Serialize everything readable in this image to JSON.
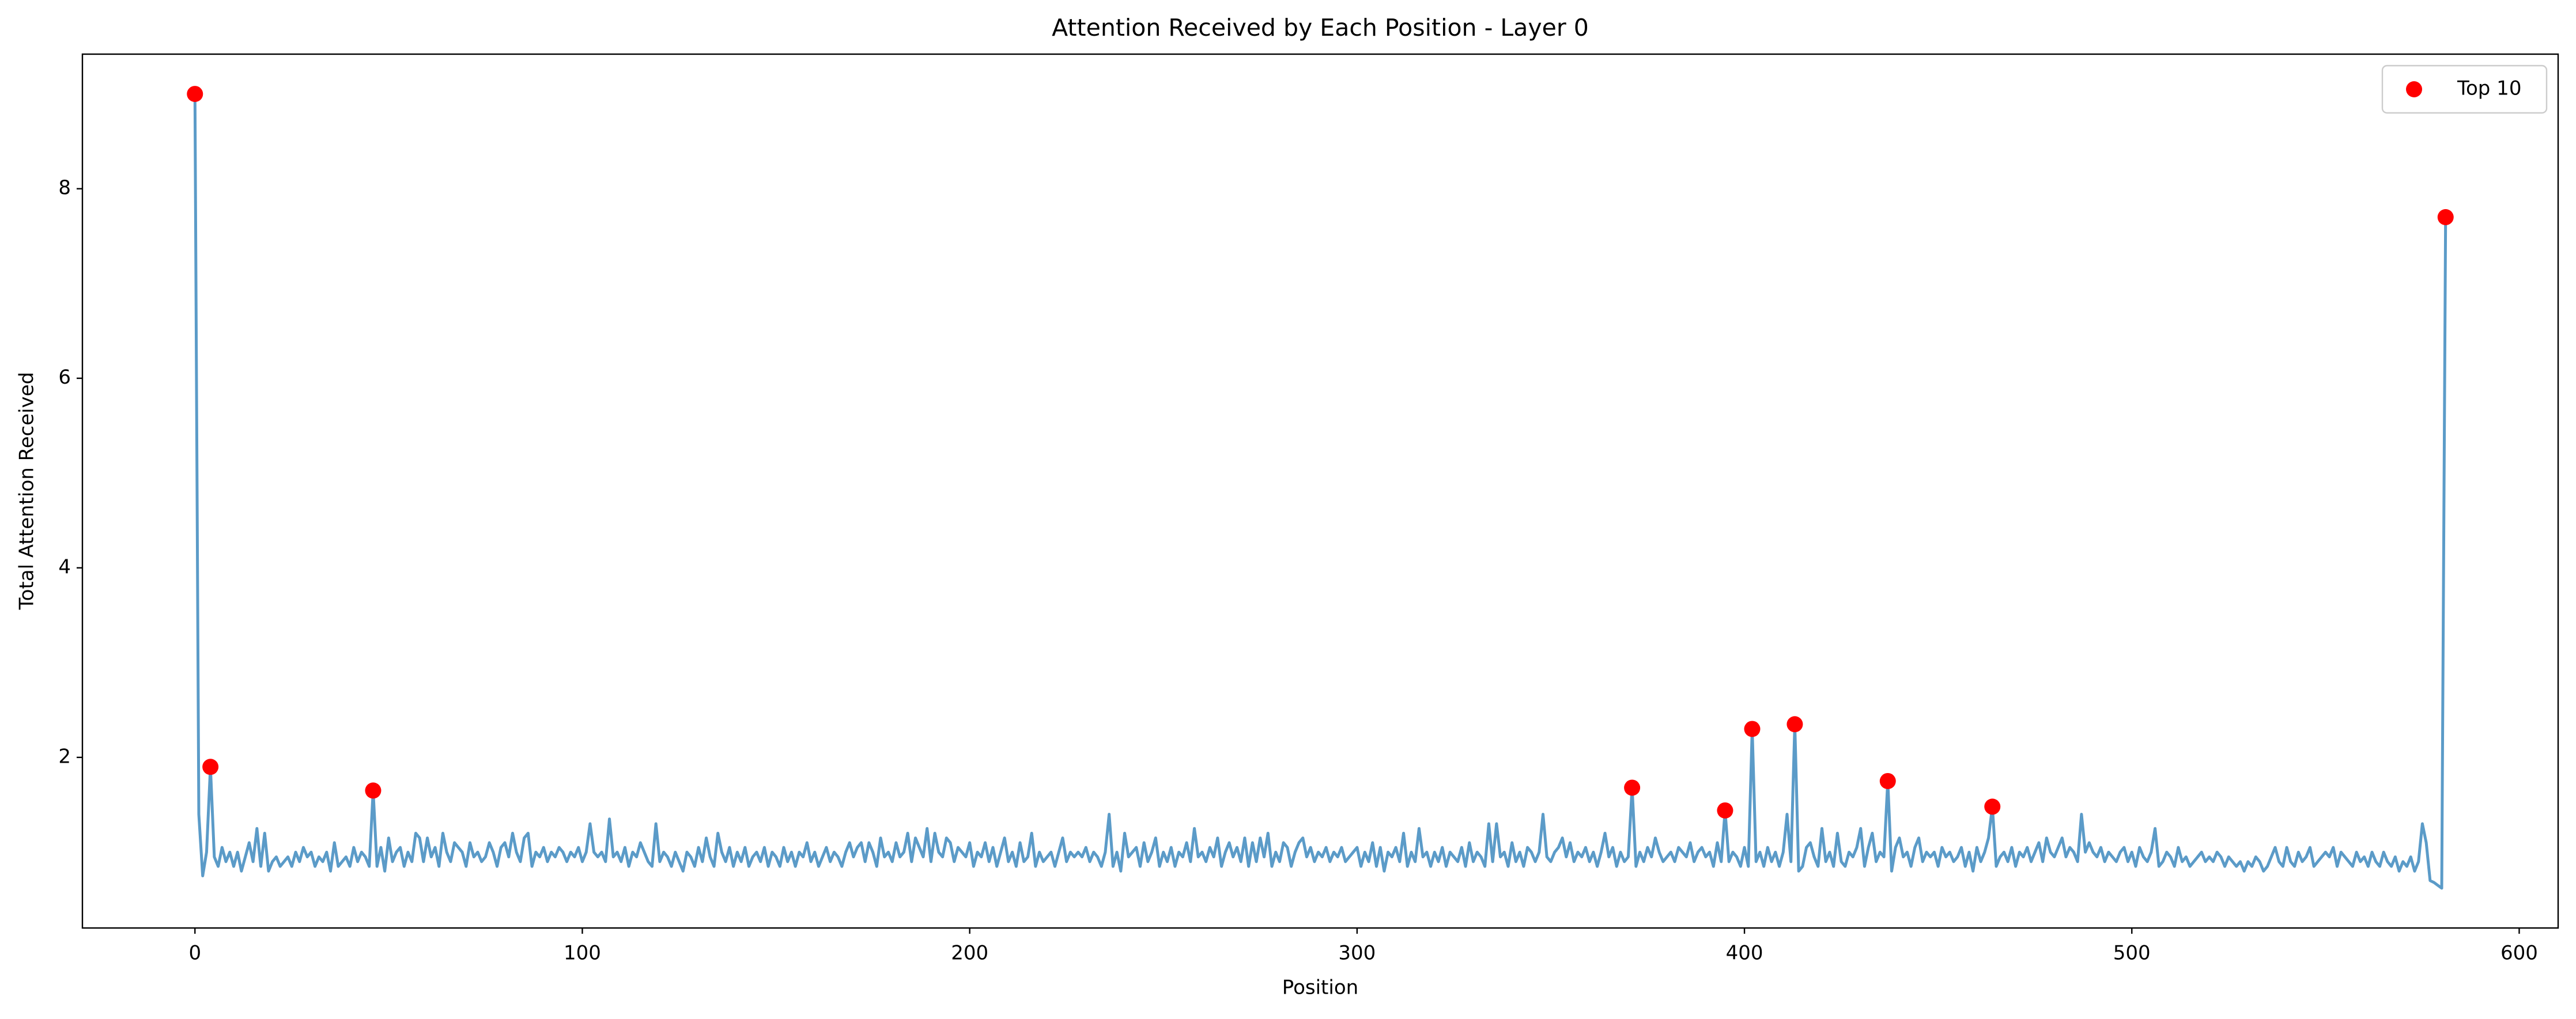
{
  "chart_data": {
    "type": "line",
    "title": "Attention Received by Each Position - Layer 0",
    "xlabel": "Position",
    "ylabel": "Total Attention Received",
    "xlim": [
      -29.05,
      610.05
    ],
    "ylim": [
      0.2,
      9.42
    ],
    "xticks": [
      0,
      100,
      200,
      300,
      400,
      500,
      600
    ],
    "yticks": [
      2,
      4,
      6,
      8
    ],
    "legend": "upper right",
    "series": [
      {
        "type": "line",
        "color": "#5b9bc8",
        "x": [
          0,
          1,
          2,
          3,
          4,
          5,
          6,
          7,
          8,
          9,
          10,
          11,
          12,
          13,
          14,
          15,
          16,
          17,
          18,
          19,
          20,
          21,
          22,
          23,
          24,
          25,
          26,
          27,
          28,
          29,
          30,
          31,
          32,
          33,
          34,
          35,
          36,
          37,
          38,
          39,
          40,
          41,
          42,
          43,
          44,
          45,
          46,
          47,
          48,
          49,
          50,
          51,
          52,
          53,
          54,
          55,
          56,
          57,
          58,
          59,
          60,
          61,
          62,
          63,
          64,
          65,
          66,
          67,
          68,
          69,
          70,
          71,
          72,
          73,
          74,
          75,
          76,
          77,
          78,
          79,
          80,
          81,
          82,
          83,
          84,
          85,
          86,
          87,
          88,
          89,
          90,
          91,
          92,
          93,
          94,
          95,
          96,
          97,
          98,
          99,
          100,
          101,
          102,
          103,
          104,
          105,
          106,
          107,
          108,
          109,
          110,
          111,
          112,
          113,
          114,
          115,
          116,
          117,
          118,
          119,
          120,
          121,
          122,
          123,
          124,
          125,
          126,
          127,
          128,
          129,
          130,
          131,
          132,
          133,
          134,
          135,
          136,
          137,
          138,
          139,
          140,
          141,
          142,
          143,
          144,
          145,
          146,
          147,
          148,
          149,
          150,
          151,
          152,
          153,
          154,
          155,
          156,
          157,
          158,
          159,
          160,
          161,
          162,
          163,
          164,
          165,
          166,
          167,
          168,
          169,
          170,
          171,
          172,
          173,
          174,
          175,
          176,
          177,
          178,
          179,
          180,
          181,
          182,
          183,
          184,
          185,
          186,
          187,
          188,
          189,
          190,
          191,
          192,
          193,
          194,
          195,
          196,
          197,
          198,
          199,
          200,
          201,
          202,
          203,
          204,
          205,
          206,
          207,
          208,
          209,
          210,
          211,
          212,
          213,
          214,
          215,
          216,
          217,
          218,
          219,
          220,
          221,
          222,
          223,
          224,
          225,
          226,
          227,
          228,
          229,
          230,
          231,
          232,
          233,
          234,
          235,
          236,
          237,
          238,
          239,
          240,
          241,
          242,
          243,
          244,
          245,
          246,
          247,
          248,
          249,
          250,
          251,
          252,
          253,
          254,
          255,
          256,
          257,
          258,
          259,
          260,
          261,
          262,
          263,
          264,
          265,
          266,
          267,
          268,
          269,
          270,
          271,
          272,
          273,
          274,
          275,
          276,
          277,
          278,
          279,
          280,
          281,
          282,
          283,
          284,
          285,
          286,
          287,
          288,
          289,
          290,
          291,
          292,
          293,
          294,
          295,
          296,
          297,
          298,
          299,
          300,
          301,
          302,
          303,
          304,
          305,
          306,
          307,
          308,
          309,
          310,
          311,
          312,
          313,
          314,
          315,
          316,
          317,
          318,
          319,
          320,
          321,
          322,
          323,
          324,
          325,
          326,
          327,
          328,
          329,
          330,
          331,
          332,
          333,
          334,
          335,
          336,
          337,
          338,
          339,
          340,
          341,
          342,
          343,
          344,
          345,
          346,
          347,
          348,
          349,
          350,
          351,
          352,
          353,
          354,
          355,
          356,
          357,
          358,
          359,
          360,
          361,
          362,
          363,
          364,
          365,
          366,
          367,
          368,
          369,
          370,
          371,
          372,
          373,
          374,
          375,
          376,
          377,
          378,
          379,
          380,
          381,
          382,
          383,
          384,
          385,
          386,
          387,
          388,
          389,
          390,
          391,
          392,
          393,
          394,
          395,
          396,
          397,
          398,
          399,
          400,
          401,
          402,
          403,
          404,
          405,
          406,
          407,
          408,
          409,
          410,
          411,
          412,
          413,
          414,
          415,
          416,
          417,
          418,
          419,
          420,
          421,
          422,
          423,
          424,
          425,
          426,
          427,
          428,
          429,
          430,
          431,
          432,
          433,
          434,
          435,
          436,
          437,
          438,
          439,
          440,
          441,
          442,
          443,
          444,
          445,
          446,
          447,
          448,
          449,
          450,
          451,
          452,
          453,
          454,
          455,
          456,
          457,
          458,
          459,
          460,
          461,
          462,
          463,
          464,
          465,
          466,
          467,
          468,
          469,
          470,
          471,
          472,
          473,
          474,
          475,
          476,
          477,
          478,
          479,
          480,
          481,
          482,
          483,
          484,
          485,
          486,
          487,
          488,
          489,
          490,
          491,
          492,
          493,
          494,
          495,
          496,
          497,
          498,
          499,
          500,
          501,
          502,
          503,
          504,
          505,
          506,
          507,
          508,
          509,
          510,
          511,
          512,
          513,
          514,
          515,
          516,
          517,
          518,
          519,
          520,
          521,
          522,
          523,
          524,
          525,
          526,
          527,
          528,
          529,
          530,
          531,
          532,
          533,
          534,
          535,
          536,
          537,
          538,
          539,
          540,
          541,
          542,
          543,
          544,
          545,
          546,
          547,
          548,
          549,
          550,
          551,
          552,
          553,
          554,
          555,
          556,
          557,
          558,
          559,
          560,
          561,
          562,
          563,
          564,
          565,
          566,
          567,
          568,
          569,
          570,
          571,
          572,
          573,
          574,
          575,
          576,
          577,
          578,
          579,
          580,
          581
        ],
        "values": [
          9.0,
          1.4,
          0.75,
          1.0,
          1.9,
          0.95,
          0.85,
          1.05,
          0.9,
          1.0,
          0.85,
          1.0,
          0.8,
          0.95,
          1.1,
          0.9,
          1.25,
          0.85,
          1.2,
          0.8,
          0.9,
          0.95,
          0.85,
          0.9,
          0.95,
          0.85,
          1.0,
          0.9,
          1.05,
          0.95,
          1.0,
          0.85,
          0.95,
          0.9,
          1.0,
          0.8,
          1.1,
          0.85,
          0.9,
          0.95,
          0.85,
          1.05,
          0.9,
          1.0,
          0.95,
          0.85,
          1.65,
          0.85,
          1.05,
          0.8,
          1.15,
          0.9,
          1.0,
          1.05,
          0.85,
          1.0,
          0.9,
          1.2,
          1.15,
          0.9,
          1.15,
          0.95,
          1.05,
          0.85,
          1.2,
          1.0,
          0.9,
          1.1,
          1.05,
          1.0,
          0.85,
          1.1,
          0.95,
          1.0,
          0.9,
          0.95,
          1.1,
          1.0,
          0.85,
          1.05,
          1.1,
          0.95,
          1.2,
          1.0,
          0.9,
          1.15,
          1.2,
          0.85,
          1.0,
          0.95,
          1.05,
          0.9,
          1.0,
          0.95,
          1.05,
          1.0,
          0.9,
          1.0,
          0.95,
          1.05,
          0.9,
          1.0,
          1.3,
          1.0,
          0.95,
          1.0,
          0.9,
          1.35,
          0.95,
          1.0,
          0.9,
          1.05,
          0.85,
          1.0,
          0.95,
          1.1,
          1.0,
          0.9,
          0.85,
          1.3,
          0.9,
          1.0,
          0.95,
          0.85,
          1.0,
          0.9,
          0.8,
          1.0,
          0.95,
          0.85,
          1.05,
          0.9,
          1.15,
          0.95,
          0.85,
          1.2,
          1.0,
          0.9,
          1.05,
          0.85,
          1.0,
          0.9,
          1.05,
          0.85,
          0.95,
          1.0,
          0.9,
          1.05,
          0.85,
          1.0,
          0.95,
          0.85,
          1.05,
          0.9,
          1.0,
          0.85,
          1.0,
          0.95,
          1.1,
          0.9,
          1.0,
          0.85,
          0.95,
          1.05,
          0.9,
          1.0,
          0.95,
          0.85,
          1.0,
          1.1,
          0.95,
          1.05,
          1.1,
          0.9,
          1.1,
          1.0,
          0.85,
          1.15,
          0.95,
          1.0,
          0.9,
          1.1,
          0.95,
          1.0,
          1.2,
          0.9,
          1.15,
          1.05,
          0.95,
          1.25,
          0.9,
          1.2,
          1.0,
          0.95,
          1.15,
          1.1,
          0.9,
          1.05,
          1.0,
          0.95,
          1.1,
          0.85,
          1.0,
          0.95,
          1.1,
          0.9,
          1.05,
          0.85,
          1.0,
          1.15,
          0.9,
          1.0,
          0.85,
          1.1,
          0.9,
          0.95,
          1.2,
          0.85,
          1.0,
          0.9,
          0.95,
          1.0,
          0.85,
          1.0,
          1.15,
          0.9,
          1.0,
          0.95,
          1.0,
          0.95,
          1.05,
          0.9,
          1.0,
          0.95,
          0.85,
          1.0,
          1.4,
          0.85,
          1.0,
          0.8,
          1.2,
          0.95,
          1.0,
          1.05,
          0.85,
          1.1,
          0.9,
          1.0,
          1.15,
          0.85,
          1.0,
          0.9,
          1.05,
          0.85,
          1.0,
          0.95,
          1.1,
          0.9,
          1.25,
          0.95,
          1.0,
          0.9,
          1.05,
          0.95,
          1.15,
          0.85,
          1.0,
          1.1,
          0.95,
          1.05,
          0.9,
          1.15,
          0.85,
          1.1,
          0.9,
          1.15,
          0.95,
          1.2,
          0.85,
          1.0,
          0.9,
          1.1,
          1.05,
          0.85,
          1.0,
          1.1,
          1.15,
          0.95,
          1.05,
          0.9,
          1.0,
          0.95,
          1.05,
          0.9,
          1.0,
          0.95,
          1.05,
          0.9,
          0.95,
          1.0,
          1.05,
          0.85,
          1.0,
          0.9,
          1.1,
          0.85,
          1.05,
          0.8,
          1.0,
          0.95,
          1.05,
          0.9,
          1.2,
          0.85,
          1.0,
          0.9,
          1.25,
          0.95,
          1.0,
          0.85,
          1.0,
          0.9,
          1.05,
          0.85,
          1.0,
          0.95,
          0.9,
          1.05,
          0.85,
          1.1,
          0.9,
          1.0,
          0.95,
          0.85,
          1.3,
          0.9,
          1.3,
          0.95,
          1.0,
          0.85,
          1.1,
          0.9,
          1.0,
          0.85,
          1.05,
          1.0,
          0.9,
          1.0,
          1.4,
          0.95,
          0.9,
          1.0,
          1.05,
          1.15,
          0.95,
          1.1,
          0.9,
          1.0,
          0.95,
          1.05,
          0.9,
          1.0,
          0.85,
          1.0,
          1.2,
          0.95,
          1.05,
          0.85,
          1.0,
          0.9,
          0.95,
          1.68,
          0.85,
          1.0,
          0.9,
          1.05,
          0.95,
          1.15,
          1.0,
          0.9,
          0.95,
          1.0,
          0.9,
          1.05,
          1.0,
          0.95,
          1.1,
          0.9,
          1.0,
          1.05,
          0.95,
          1.0,
          0.85,
          1.1,
          0.9,
          1.44,
          0.9,
          1.0,
          0.95,
          0.85,
          1.05,
          0.85,
          2.3,
          0.9,
          1.0,
          0.85,
          1.05,
          0.9,
          1.0,
          0.85,
          1.0,
          1.4,
          0.9,
          2.35,
          0.8,
          0.85,
          1.05,
          1.1,
          0.95,
          0.85,
          1.25,
          0.9,
          1.0,
          0.85,
          1.2,
          0.9,
          0.85,
          1.0,
          0.95,
          1.05,
          1.25,
          0.85,
          1.05,
          1.2,
          0.9,
          1.0,
          0.95,
          1.75,
          0.8,
          1.05,
          1.15,
          0.95,
          1.0,
          0.85,
          1.05,
          1.15,
          0.9,
          1.0,
          0.95,
          1.0,
          0.85,
          1.05,
          0.95,
          1.0,
          0.9,
          0.95,
          1.05,
          0.85,
          1.0,
          0.8,
          1.05,
          0.9,
          1.0,
          1.15,
          1.48,
          0.85,
          0.95,
          1.0,
          0.9,
          1.05,
          0.85,
          1.0,
          0.95,
          1.05,
          0.9,
          1.0,
          1.1,
          0.9,
          1.15,
          1.0,
          0.95,
          1.05,
          1.15,
          0.95,
          1.05,
          1.0,
          0.9,
          1.4,
          1.0,
          1.1,
          1.0,
          0.95,
          1.05,
          0.9,
          1.0,
          0.95,
          0.9,
          1.0,
          1.05,
          0.9,
          1.0,
          0.85,
          1.05,
          0.95,
          0.9,
          1.0,
          1.25,
          0.85,
          0.9,
          1.0,
          0.95,
          0.85,
          1.05,
          0.9,
          0.95,
          0.85,
          0.9,
          0.95,
          1.0,
          0.9,
          0.95,
          0.9,
          1.0,
          0.95,
          0.85,
          0.95,
          0.9,
          0.85,
          0.9,
          0.8,
          0.9,
          0.85,
          0.95,
          0.9,
          0.8,
          0.85,
          0.95,
          1.05,
          0.9,
          0.85,
          1.05,
          0.9,
          0.85,
          1.0,
          0.9,
          0.95,
          1.05,
          0.85,
          0.9,
          0.95,
          1.0,
          0.95,
          1.05,
          0.85,
          1.0,
          0.95,
          0.9,
          0.85,
          1.0,
          0.9,
          0.95,
          0.85,
          1.0,
          0.9,
          0.85,
          1.0,
          0.9,
          0.85,
          0.95,
          0.8,
          0.9,
          0.85,
          0.95,
          0.8,
          0.9,
          1.3,
          1.1,
          0.7,
          0.68,
          0.65,
          0.62,
          7.7
        ]
      },
      {
        "type": "scatter",
        "name": "Top 10",
        "color": "#ff0000",
        "x": [
          0,
          4,
          46,
          371,
          395,
          402,
          413,
          437,
          464,
          581
        ],
        "values": [
          9.0,
          1.9,
          1.65,
          1.68,
          1.44,
          2.3,
          2.35,
          1.75,
          1.48,
          7.7
        ]
      }
    ]
  }
}
